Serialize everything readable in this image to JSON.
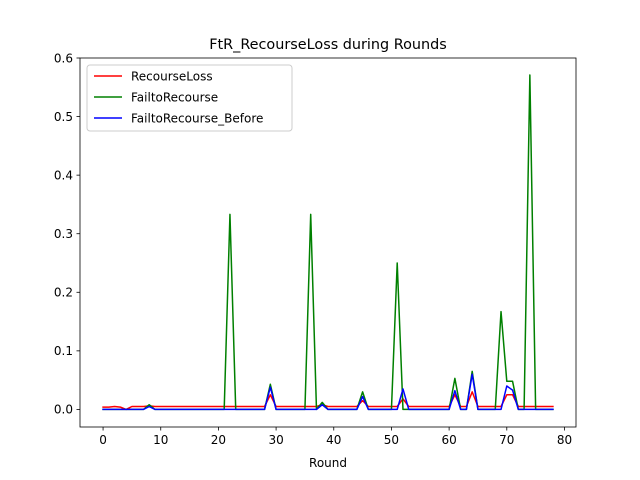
{
  "chart_data": {
    "type": "line",
    "title": "FtR_RecourseLoss during Rounds",
    "xlabel": "Round",
    "ylabel": "",
    "xlim": [
      -4,
      82
    ],
    "ylim": [
      -0.03,
      0.6
    ],
    "xticks": [
      0,
      10,
      20,
      30,
      40,
      50,
      60,
      70,
      80
    ],
    "xtick_labels": [
      "0",
      "10",
      "20",
      "30",
      "40",
      "50",
      "60",
      "70",
      "80"
    ],
    "yticks": [
      0.0,
      0.1,
      0.2,
      0.3,
      0.4,
      0.5,
      0.6
    ],
    "ytick_labels": [
      "0.0",
      "0.1",
      "0.2",
      "0.3",
      "0.4",
      "0.5",
      "0.6"
    ],
    "grid": false,
    "legend_position": "upper-left",
    "x": [
      0,
      1,
      2,
      3,
      4,
      5,
      6,
      7,
      8,
      9,
      10,
      11,
      12,
      13,
      14,
      15,
      16,
      17,
      18,
      19,
      20,
      21,
      22,
      23,
      24,
      25,
      26,
      27,
      28,
      29,
      30,
      31,
      32,
      33,
      34,
      35,
      36,
      37,
      38,
      39,
      40,
      41,
      42,
      43,
      44,
      45,
      46,
      47,
      48,
      49,
      50,
      51,
      52,
      53,
      54,
      55,
      56,
      57,
      58,
      59,
      60,
      61,
      62,
      63,
      64,
      65,
      66,
      67,
      68,
      69,
      70,
      71,
      72,
      73,
      74,
      75,
      76,
      77,
      78
    ],
    "series": [
      {
        "name": "RecourseLoss",
        "color": "#ff0000",
        "values": [
          0.004,
          0.004,
          0.005,
          0.004,
          0.0,
          0.005,
          0.005,
          0.005,
          0.006,
          0.005,
          0.005,
          0.005,
          0.005,
          0.005,
          0.005,
          0.005,
          0.005,
          0.005,
          0.005,
          0.005,
          0.005,
          0.005,
          0.005,
          0.005,
          0.005,
          0.005,
          0.005,
          0.005,
          0.005,
          0.025,
          0.005,
          0.005,
          0.005,
          0.005,
          0.005,
          0.005,
          0.005,
          0.005,
          0.008,
          0.005,
          0.005,
          0.005,
          0.005,
          0.005,
          0.005,
          0.015,
          0.005,
          0.005,
          0.005,
          0.005,
          0.005,
          0.005,
          0.018,
          0.005,
          0.005,
          0.005,
          0.005,
          0.005,
          0.005,
          0.005,
          0.005,
          0.025,
          0.005,
          0.005,
          0.03,
          0.005,
          0.005,
          0.005,
          0.005,
          0.005,
          0.025,
          0.025,
          0.005,
          0.005,
          0.005,
          0.005,
          0.005,
          0.005,
          0.005
        ]
      },
      {
        "name": "FailtoRecourse",
        "color": "#008000",
        "values": [
          0.0,
          0.0,
          0.0,
          0.0,
          0.0,
          0.0,
          0.0,
          0.0,
          0.008,
          0.0,
          0.0,
          0.0,
          0.0,
          0.0,
          0.0,
          0.0,
          0.0,
          0.0,
          0.0,
          0.0,
          0.0,
          0.0,
          0.333,
          0.0,
          0.0,
          0.0,
          0.0,
          0.0,
          0.0,
          0.043,
          0.0,
          0.0,
          0.0,
          0.0,
          0.0,
          0.0,
          0.333,
          0.0,
          0.012,
          0.0,
          0.0,
          0.0,
          0.0,
          0.0,
          0.0,
          0.03,
          0.0,
          0.0,
          0.0,
          0.0,
          0.0,
          0.25,
          0.0,
          0.0,
          0.0,
          0.0,
          0.0,
          0.0,
          0.0,
          0.0,
          0.0,
          0.053,
          0.0,
          0.0,
          0.065,
          0.0,
          0.0,
          0.0,
          0.0,
          0.167,
          0.048,
          0.048,
          0.0,
          0.0,
          0.571,
          0.0,
          0.0,
          0.0,
          0.0
        ]
      },
      {
        "name": "FailtoRecourse_Before",
        "color": "#0000ff",
        "values": [
          0.0,
          0.0,
          0.0,
          0.0,
          0.0,
          0.0,
          0.0,
          0.0,
          0.005,
          0.0,
          0.0,
          0.0,
          0.0,
          0.0,
          0.0,
          0.0,
          0.0,
          0.0,
          0.0,
          0.0,
          0.0,
          0.0,
          0.0,
          0.0,
          0.0,
          0.0,
          0.0,
          0.0,
          0.0,
          0.038,
          0.0,
          0.0,
          0.0,
          0.0,
          0.0,
          0.0,
          0.0,
          0.0,
          0.008,
          0.0,
          0.0,
          0.0,
          0.0,
          0.0,
          0.0,
          0.022,
          0.0,
          0.0,
          0.0,
          0.0,
          0.0,
          0.0,
          0.035,
          0.0,
          0.0,
          0.0,
          0.0,
          0.0,
          0.0,
          0.0,
          0.0,
          0.032,
          0.0,
          0.0,
          0.06,
          0.0,
          0.0,
          0.0,
          0.0,
          0.0,
          0.04,
          0.033,
          0.0,
          0.0,
          0.0,
          0.0,
          0.0,
          0.0,
          0.0
        ]
      }
    ]
  }
}
